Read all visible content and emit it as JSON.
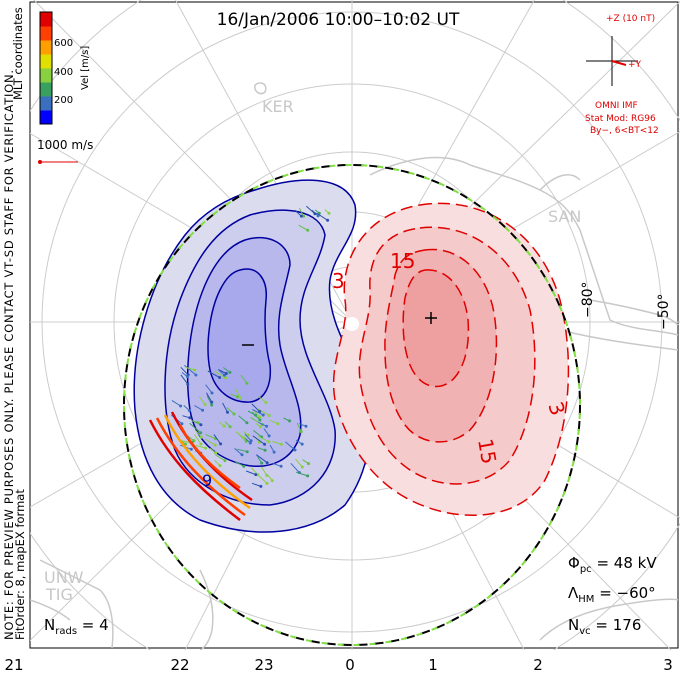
{
  "title": "16/Jan/2006 10:00–10:02 UT",
  "coordinates_label": "MLT coordinates",
  "preview_note_line1": "NOTE: FOR PREVIEW PURPOSES ONLY. PLEASE CONTACT VT-SD STAFF FOR VERIFICATION.",
  "preview_note_line2": "FitOrder: 8, mapEX format",
  "velocity_scale": {
    "axis_label": "Vel [m/s]",
    "ticks": [
      "600",
      "400",
      "200"
    ],
    "colors": [
      "#0000ff",
      "#3a6fc0",
      "#3aa060",
      "#88d040",
      "#e0e000",
      "#ffa000",
      "#ff4000",
      "#e00000"
    ]
  },
  "reference_vector_label": "1000 m/s",
  "imf": {
    "z_label": "+Z (10 nT)",
    "y_label": "+Y",
    "source": "OMNI IMF",
    "model_line1": "Stat Mod: RG96",
    "model_line2": "By−, 6<BT<12",
    "color": "#e00000"
  },
  "stations": [
    "KER",
    "SAN",
    "UNW",
    "TIG"
  ],
  "latitude_labels": [
    "−80°",
    "−50°"
  ],
  "contour_labels": [
    "3",
    "15",
    "15",
    "3",
    "9"
  ],
  "potential_markers": {
    "min": "−",
    "max": "+"
  },
  "stats": {
    "phi_pc_symbol": "Φ",
    "phi_pc_sub": "pc",
    "phi_pc_value": " = 48 kV",
    "lambda_symbol": "Λ",
    "lambda_sub": "HM",
    "lambda_value": " = −60°",
    "nvc_symbol": "N",
    "nvc_sub": "vc",
    "nvc_value": " = 176",
    "nrads_symbol": "N",
    "nrads_sub": "rads",
    "nrads_value": " = 4"
  },
  "mlt_axis": [
    "21",
    "22",
    "23",
    "0",
    "1",
    "2",
    "3"
  ],
  "colors": {
    "negative_cell": "#0000a0",
    "positive_cell": "#e00000",
    "boundary_dash": "#80e040",
    "map_gray": "#c8c8c8"
  }
}
